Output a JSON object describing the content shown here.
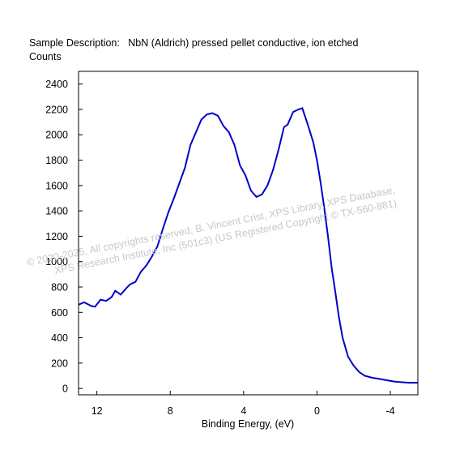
{
  "header": {
    "description_label": "Sample Description:",
    "description_value": "NbN (Aldrich) pressed pellet conductive, ion etched"
  },
  "watermark": {
    "line1": "© 2020-2025,  All copyrights reserved,   B. Vincent Crist,  XPS Library, XPS Database,",
    "line2": "XPS Research Institute, Inc (501c3)   (US Registered Copyright © TX-560-881)"
  },
  "chart_data": {
    "type": "line",
    "title": "",
    "xlabel": "Binding Energy, (eV)",
    "ylabel": "Counts",
    "x_reversed": true,
    "xlim": [
      13,
      -5.5
    ],
    "ylim": [
      -50,
      2500
    ],
    "x_ticks": [
      12,
      8,
      4,
      0,
      -4
    ],
    "x_tick_labels": [
      "12",
      "8",
      "4",
      "0",
      "-4"
    ],
    "y_ticks": [
      0,
      200,
      400,
      600,
      800,
      1000,
      1200,
      1400,
      1600,
      1800,
      2000,
      2200,
      2400
    ],
    "grid": false,
    "legend": "none",
    "line_color": "#0000cc",
    "series": [
      {
        "x": [
          13.0,
          12.7,
          12.3,
          12.1,
          11.8,
          11.5,
          11.2,
          11.0,
          10.7,
          10.4,
          10.2,
          9.9,
          9.6,
          9.3,
          9.0,
          8.7,
          8.4,
          8.1,
          7.8,
          7.5,
          7.2,
          6.9,
          6.6,
          6.3,
          6.0,
          5.7,
          5.4,
          5.1,
          4.8,
          4.5,
          4.2,
          3.9,
          3.6,
          3.3,
          3.0,
          2.7,
          2.4,
          2.1,
          1.8,
          1.6,
          1.3,
          1.0,
          0.8,
          0.5,
          0.2,
          0.0,
          -0.2,
          -0.4,
          -0.6,
          -0.8,
          -1.0,
          -1.2,
          -1.4,
          -1.7,
          -2.0,
          -2.3,
          -2.6,
          -3.0,
          -3.4,
          -3.8,
          -4.2,
          -4.6,
          -5.0,
          -5.5
        ],
        "y": [
          660,
          680,
          650,
          645,
          700,
          690,
          720,
          770,
          740,
          790,
          820,
          840,
          920,
          970,
          1040,
          1120,
          1260,
          1390,
          1500,
          1620,
          1740,
          1920,
          2020,
          2120,
          2160,
          2170,
          2150,
          2070,
          2020,
          1920,
          1760,
          1680,
          1560,
          1510,
          1530,
          1600,
          1720,
          1880,
          2060,
          2080,
          2180,
          2200,
          2210,
          2080,
          1940,
          1800,
          1620,
          1420,
          1200,
          950,
          760,
          560,
          400,
          250,
          180,
          130,
          100,
          85,
          75,
          65,
          55,
          50,
          45,
          45
        ]
      }
    ]
  }
}
